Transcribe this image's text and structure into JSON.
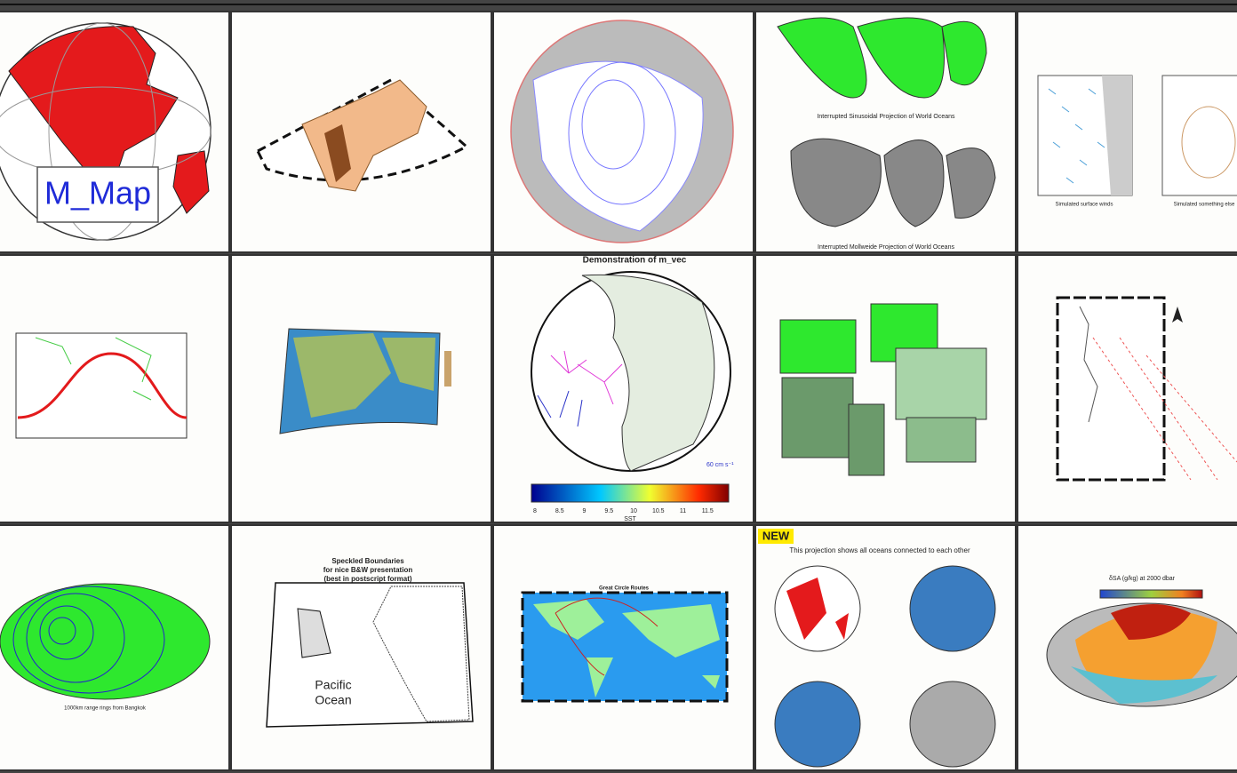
{
  "row1": {
    "logo": "M_Map",
    "sinusoidal_caption": "Interrupted Sinusoidal Projection of World Oceans",
    "mollweide_caption": "Interrupted Mollweide Projection of World Oceans",
    "wind_caption_1": "Simulated surface winds",
    "wind_caption_2": "Simulated something else"
  },
  "row2": {
    "vec_title": "Demonstration of m_vec",
    "vec_scale": "60 cm s⁻¹",
    "colorbar_ticks": [
      "8",
      "8.5",
      "9",
      "9.5",
      "10",
      "10.5",
      "11",
      "11.5"
    ],
    "colorbar_label": "SST"
  },
  "row3": {
    "rings_caption": "1000km range rings from Bangkok",
    "speckled_title": [
      "Speckled Boundaries",
      "for nice B&W presentation",
      "(best in postscript format)"
    ],
    "ocean_label": [
      "Pacific",
      "Ocean"
    ],
    "gc_title": "Great Circle Routes",
    "new_badge": "NEW",
    "connected_caption": "This projection shows all oceans connected to each other",
    "salinity_title": "δSA (g/kg) at 2000 dbar"
  }
}
